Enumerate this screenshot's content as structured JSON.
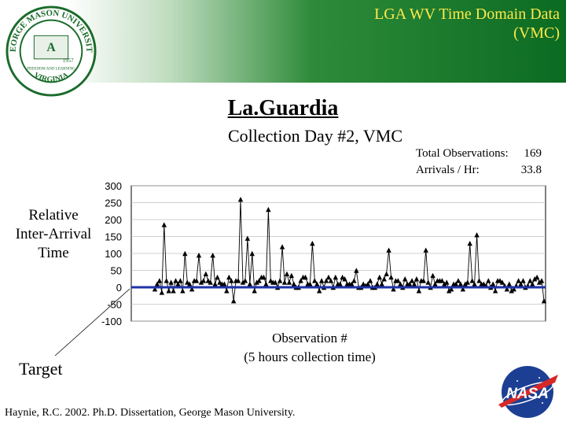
{
  "header": {
    "title_line1": "LGA WV Time Domain Data",
    "title_line2": "(VMC)"
  },
  "logo": {
    "text": "GEORGE MASON UNIVERSITY",
    "state": "VIRGINIA",
    "year": "1957",
    "motto": "FREEDOM AND LEARNING"
  },
  "title": "La.Guardia",
  "subtitle": "Collection Day #2, VMC",
  "stats": {
    "total_label": "Total Observations:",
    "total_value": "169",
    "rate_label": "Arrivals / Hr:",
    "rate_value": "33.8"
  },
  "target_label": "Target",
  "citation": "Haynie, R.C. 2002. Ph.D. Dissertation, George Mason University.",
  "colors": {
    "banner_green": "#0b6b22",
    "header_text": "#ffe94a",
    "zero_line": "#1f33a6",
    "series": "#000000"
  },
  "chart_data": {
    "type": "line",
    "title": "",
    "ylabel_lines": [
      "Relative",
      "Inter-Arrival",
      "Time"
    ],
    "xlabel_lines": [
      "Observation #",
      "(5 hours collection time)"
    ],
    "ylim": [
      -100,
      300
    ],
    "yticks": [
      "300",
      "250",
      "200",
      "150",
      "100",
      "50",
      "0",
      "-50",
      "-100"
    ],
    "grid": true,
    "marker": "triangle",
    "reference_line": 0,
    "series": [
      {
        "values": [
          -5,
          10,
          20,
          -15,
          185,
          20,
          -10,
          15,
          -10,
          20,
          10,
          20,
          -10,
          100,
          15,
          10,
          -5,
          20,
          20,
          95,
          15,
          20,
          40,
          20,
          15,
          95,
          10,
          30,
          15,
          10,
          10,
          -10,
          30,
          20,
          -40,
          20,
          20,
          260,
          15,
          20,
          145,
          10,
          100,
          -10,
          15,
          20,
          30,
          30,
          10,
          230,
          20,
          15,
          15,
          0,
          20,
          120,
          15,
          40,
          15,
          35,
          10,
          0,
          0,
          20,
          30,
          30,
          10,
          10,
          130,
          20,
          10,
          -10,
          20,
          0,
          20,
          30,
          20,
          0,
          30,
          10,
          10,
          30,
          25,
          10,
          10,
          10,
          20,
          50,
          0,
          0,
          10,
          5,
          10,
          20,
          0,
          0,
          10,
          30,
          10,
          25,
          40,
          110,
          30,
          -5,
          20,
          20,
          10,
          0,
          25,
          10,
          10,
          20,
          10,
          25,
          -10,
          20,
          20,
          110,
          15,
          0,
          35,
          10,
          20,
          20,
          20,
          10,
          15,
          -10,
          -5,
          10,
          10,
          20,
          10,
          -5,
          10,
          15,
          130,
          20,
          10,
          155,
          20,
          10,
          10,
          5,
          20,
          0,
          10,
          -10,
          20,
          20,
          15,
          5,
          -5,
          10,
          -10,
          -5,
          5,
          20,
          10,
          20,
          0,
          5,
          20,
          10,
          25,
          30,
          15,
          20,
          -40
        ]
      }
    ]
  }
}
